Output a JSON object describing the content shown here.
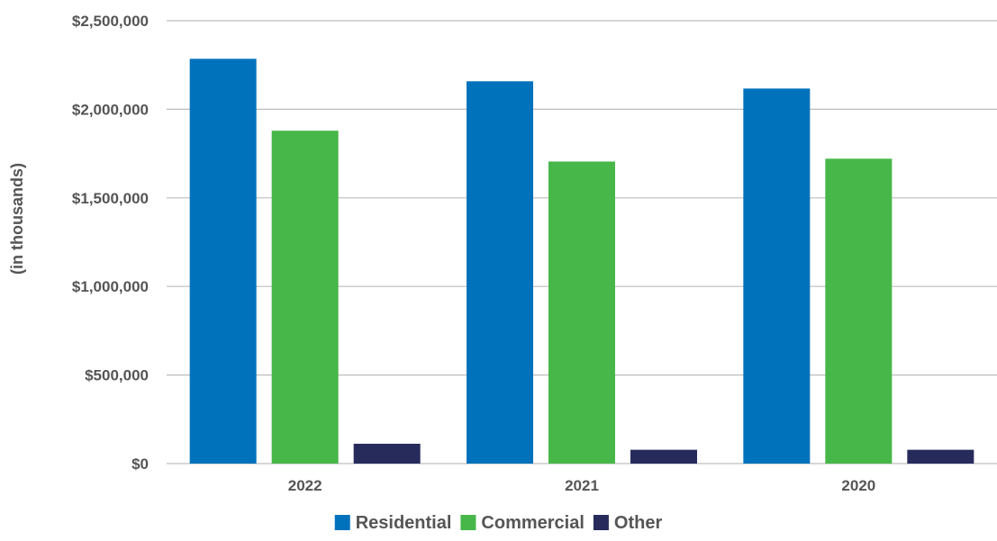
{
  "chart_data": {
    "type": "bar",
    "ylabel": "(in thousands)",
    "categories": [
      "2022",
      "2021",
      "2020"
    ],
    "series": [
      {
        "name": "Residential",
        "color": "#0072BC",
        "values": [
          2285000,
          2158000,
          2117000
        ]
      },
      {
        "name": "Commercial",
        "color": "#46B748",
        "values": [
          1879000,
          1705000,
          1721000
        ]
      },
      {
        "name": "Other",
        "color": "#272B5C",
        "values": [
          112000,
          78000,
          78000
        ]
      }
    ],
    "ylim": [
      0,
      2500000
    ],
    "yticks": [
      0,
      500000,
      1000000,
      1500000,
      2000000,
      2500000
    ],
    "ytick_labels": [
      "$0",
      "$500,000",
      "$1,000,000",
      "$1,500,000",
      "$2,000,000",
      "$2,500,000"
    ],
    "grid": true,
    "legend": "bottom-center"
  }
}
